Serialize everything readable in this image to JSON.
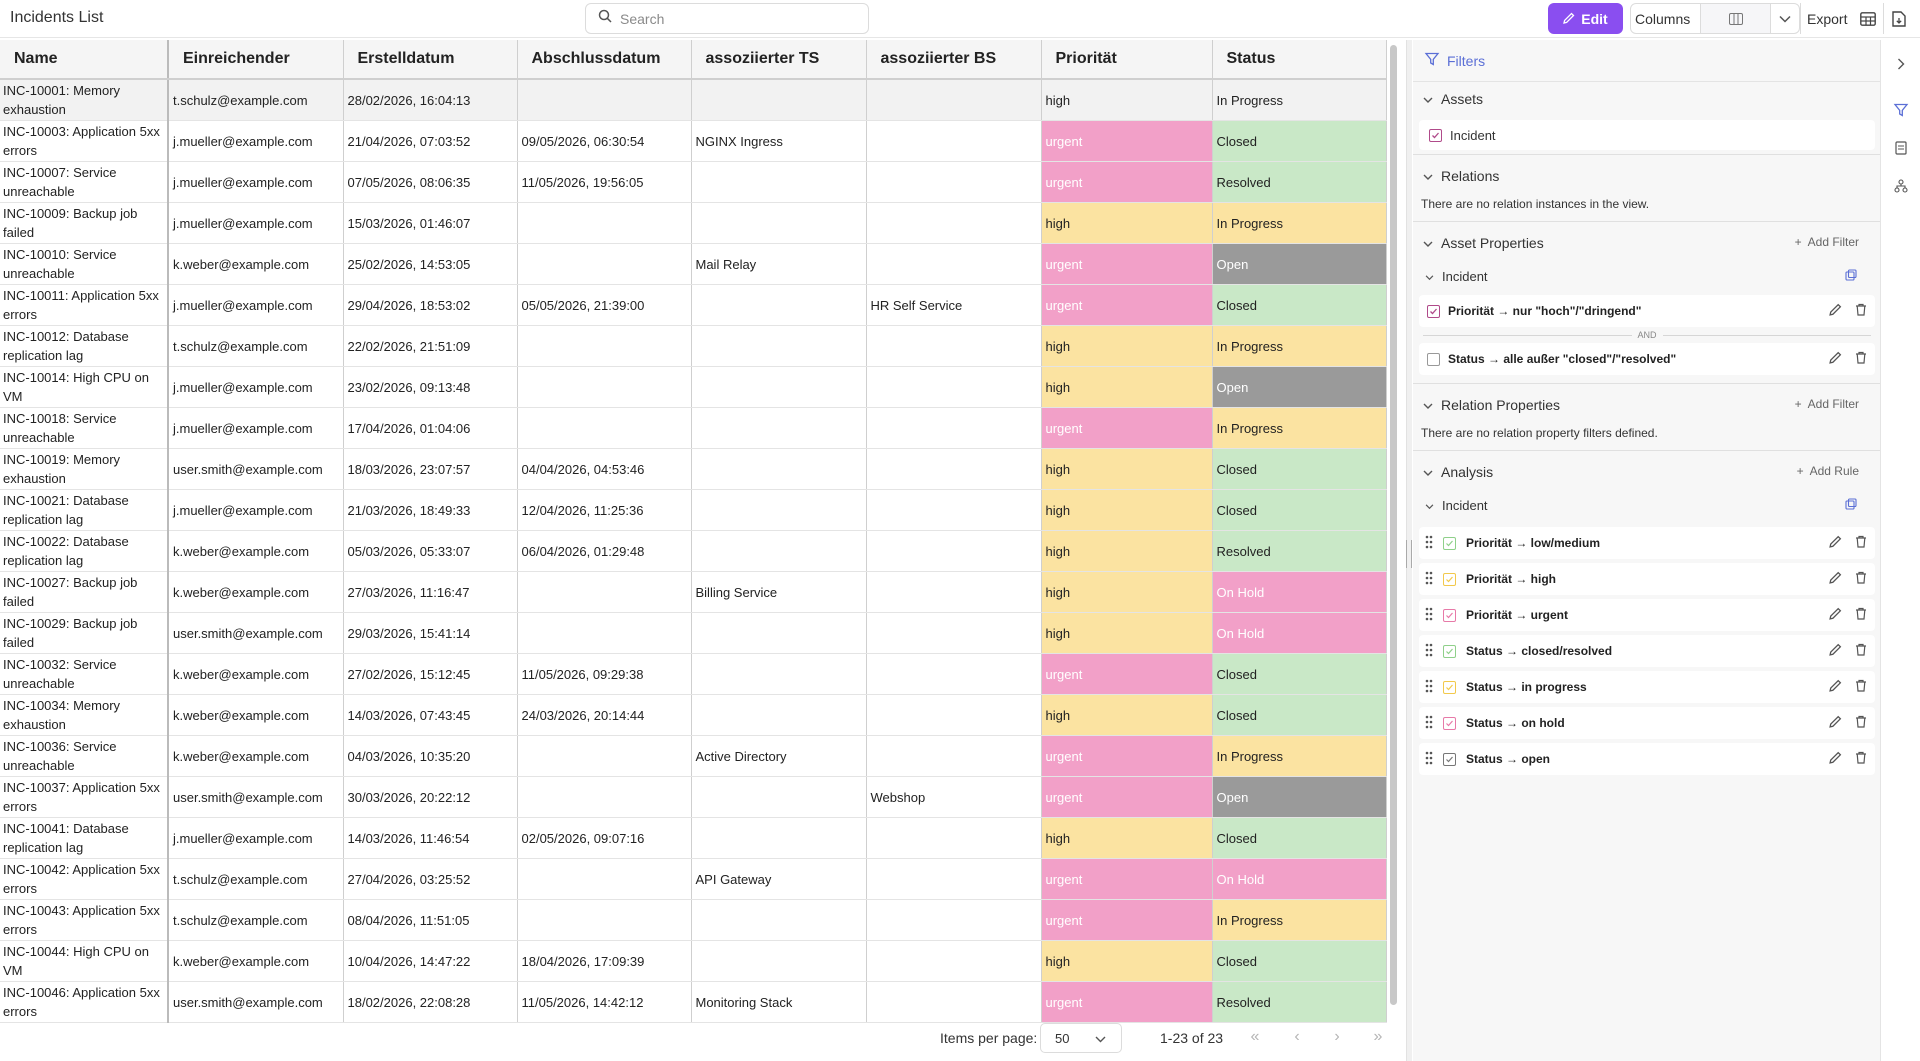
{
  "app": {
    "title": "Incidents List"
  },
  "search": {
    "placeholder": "Search"
  },
  "toolbar": {
    "edit_label": "Edit",
    "columns_label": "Columns",
    "export_label": "Export"
  },
  "table": {
    "headers": [
      "Name",
      "Einreichender",
      "Erstelldatum",
      "Abschlussdatum",
      "assoziierter TS",
      "assoziierter BS",
      "Priorität",
      "Status"
    ],
    "rows": [
      {
        "name": "INC-10001: Memory exhaustion",
        "submitter": "t.schulz@example.com",
        "created": "28/02/2026, 16:04:13",
        "closed": "",
        "ts": "",
        "bs": "",
        "priority": "high",
        "status": "In Progress"
      },
      {
        "name": "INC-10003: Application 5xx errors",
        "submitter": "j.mueller@example.com",
        "created": "21/04/2026, 07:03:52",
        "closed": "09/05/2026, 06:30:54",
        "ts": "NGINX Ingress",
        "bs": "",
        "priority": "urgent",
        "status": "Closed"
      },
      {
        "name": "INC-10007: Service unreachable",
        "submitter": "j.mueller@example.com",
        "created": "07/05/2026, 08:06:35",
        "closed": "11/05/2026, 19:56:05",
        "ts": "",
        "bs": "",
        "priority": "urgent",
        "status": "Resolved"
      },
      {
        "name": "INC-10009: Backup job failed",
        "submitter": "j.mueller@example.com",
        "created": "15/03/2026, 01:46:07",
        "closed": "",
        "ts": "",
        "bs": "",
        "priority": "high",
        "status": "In Progress"
      },
      {
        "name": "INC-10010: Service unreachable",
        "submitter": "k.weber@example.com",
        "created": "25/02/2026, 14:53:05",
        "closed": "",
        "ts": "Mail Relay",
        "bs": "",
        "priority": "urgent",
        "status": "Open"
      },
      {
        "name": "INC-10011: Application 5xx errors",
        "submitter": "j.mueller@example.com",
        "created": "29/04/2026, 18:53:02",
        "closed": "05/05/2026, 21:39:00",
        "ts": "",
        "bs": "HR Self Service",
        "priority": "urgent",
        "status": "Closed"
      },
      {
        "name": "INC-10012: Database replication lag",
        "submitter": "t.schulz@example.com",
        "created": "22/02/2026, 21:51:09",
        "closed": "",
        "ts": "",
        "bs": "",
        "priority": "high",
        "status": "In Progress"
      },
      {
        "name": "INC-10014: High CPU on VM",
        "submitter": "j.mueller@example.com",
        "created": "23/02/2026, 09:13:48",
        "closed": "",
        "ts": "",
        "bs": "",
        "priority": "high",
        "status": "Open"
      },
      {
        "name": "INC-10018: Service unreachable",
        "submitter": "j.mueller@example.com",
        "created": "17/04/2026, 01:04:06",
        "closed": "",
        "ts": "",
        "bs": "",
        "priority": "urgent",
        "status": "In Progress"
      },
      {
        "name": "INC-10019: Memory exhaustion",
        "submitter": "user.smith@example.com",
        "created": "18/03/2026, 23:07:57",
        "closed": "04/04/2026, 04:53:46",
        "ts": "",
        "bs": "",
        "priority": "high",
        "status": "Closed"
      },
      {
        "name": "INC-10021: Database replication lag",
        "submitter": "j.mueller@example.com",
        "created": "21/03/2026, 18:49:33",
        "closed": "12/04/2026, 11:25:36",
        "ts": "",
        "bs": "",
        "priority": "high",
        "status": "Closed"
      },
      {
        "name": "INC-10022: Database replication lag",
        "submitter": "k.weber@example.com",
        "created": "05/03/2026, 05:33:07",
        "closed": "06/04/2026, 01:29:48",
        "ts": "",
        "bs": "",
        "priority": "high",
        "status": "Resolved"
      },
      {
        "name": "INC-10027: Backup job failed",
        "submitter": "k.weber@example.com",
        "created": "27/03/2026, 11:16:47",
        "closed": "",
        "ts": "Billing Service",
        "bs": "",
        "priority": "high",
        "status": "On Hold"
      },
      {
        "name": "INC-10029: Backup job failed",
        "submitter": "user.smith@example.com",
        "created": "29/03/2026, 15:41:14",
        "closed": "",
        "ts": "",
        "bs": "",
        "priority": "high",
        "status": "On Hold"
      },
      {
        "name": "INC-10032: Service unreachable",
        "submitter": "k.weber@example.com",
        "created": "27/02/2026, 15:12:45",
        "closed": "11/05/2026, 09:29:38",
        "ts": "",
        "bs": "",
        "priority": "urgent",
        "status": "Closed"
      },
      {
        "name": "INC-10034: Memory exhaustion",
        "submitter": "k.weber@example.com",
        "created": "14/03/2026, 07:43:45",
        "closed": "24/03/2026, 20:14:44",
        "ts": "",
        "bs": "",
        "priority": "high",
        "status": "Closed"
      },
      {
        "name": "INC-10036: Service unreachable",
        "submitter": "k.weber@example.com",
        "created": "04/03/2026, 10:35:20",
        "closed": "",
        "ts": "Active Directory",
        "bs": "",
        "priority": "urgent",
        "status": "In Progress"
      },
      {
        "name": "INC-10037: Application 5xx errors",
        "submitter": "user.smith@example.com",
        "created": "30/03/2026, 20:22:12",
        "closed": "",
        "ts": "",
        "bs": "Webshop",
        "priority": "urgent",
        "status": "Open"
      },
      {
        "name": "INC-10041: Database replication lag",
        "submitter": "j.mueller@example.com",
        "created": "14/03/2026, 11:46:54",
        "closed": "02/05/2026, 09:07:16",
        "ts": "",
        "bs": "",
        "priority": "high",
        "status": "Closed"
      },
      {
        "name": "INC-10042: Application 5xx errors",
        "submitter": "t.schulz@example.com",
        "created": "27/04/2026, 03:25:52",
        "closed": "",
        "ts": "API Gateway",
        "bs": "",
        "priority": "urgent",
        "status": "On Hold"
      },
      {
        "name": "INC-10043: Application 5xx errors",
        "submitter": "t.schulz@example.com",
        "created": "08/04/2026, 11:51:05",
        "closed": "",
        "ts": "",
        "bs": "",
        "priority": "urgent",
        "status": "In Progress"
      },
      {
        "name": "INC-10044: High CPU on VM",
        "submitter": "k.weber@example.com",
        "created": "10/04/2026, 14:47:22",
        "closed": "18/04/2026, 17:09:39",
        "ts": "",
        "bs": "",
        "priority": "high",
        "status": "Closed"
      },
      {
        "name": "INC-10046: Application 5xx errors",
        "submitter": "user.smith@example.com",
        "created": "18/02/2026, 22:08:28",
        "closed": "11/05/2026, 14:42:12",
        "ts": "Monitoring Stack",
        "bs": "",
        "priority": "urgent",
        "status": "Resolved"
      }
    ]
  },
  "pagination": {
    "items_per_page_label": "Items per page:",
    "items_per_page_value": "50",
    "range": "1-23 of 23"
  },
  "filters": {
    "title": "Filters",
    "assets": {
      "title": "Assets",
      "items": [
        "Incident"
      ]
    },
    "relations": {
      "title": "Relations",
      "note": "There are no relation instances in the view."
    },
    "asset_properties": {
      "title": "Asset Properties",
      "add_label": "Add Filter",
      "group": "Incident",
      "rules": [
        {
          "label": "Priorität → nur \"hoch\"/\"dringend\"",
          "checked": true
        },
        {
          "label": "Status → alle außer \"closed\"/\"resolved\"",
          "checked": false
        }
      ],
      "connector": "AND"
    },
    "relation_properties": {
      "title": "Relation Properties",
      "add_label": "Add Filter",
      "note": "There are no relation property filters defined."
    },
    "analysis": {
      "title": "Analysis",
      "add_label": "Add Rule",
      "group": "Incident",
      "rules": [
        {
          "label": "Priorität → low/medium",
          "color": "#8fd08a"
        },
        {
          "label": "Priorität → high",
          "color": "#f2c94c"
        },
        {
          "label": "Priorität → urgent",
          "color": "#e77aa8"
        },
        {
          "label": "Status → closed/resolved",
          "color": "#8fd08a"
        },
        {
          "label": "Status → in progress",
          "color": "#f2c94c"
        },
        {
          "label": "Status → on hold",
          "color": "#e77aa8"
        },
        {
          "label": "Status → open",
          "color": "#777777"
        }
      ]
    }
  },
  "colors": {
    "accent": "#8a4ef0",
    "filter_blue": "#5b6fd6",
    "high": "#fbe3a1",
    "urgent": "#f2a0c8",
    "closed": "#c9e8c7",
    "open": "#9a9a9a"
  }
}
